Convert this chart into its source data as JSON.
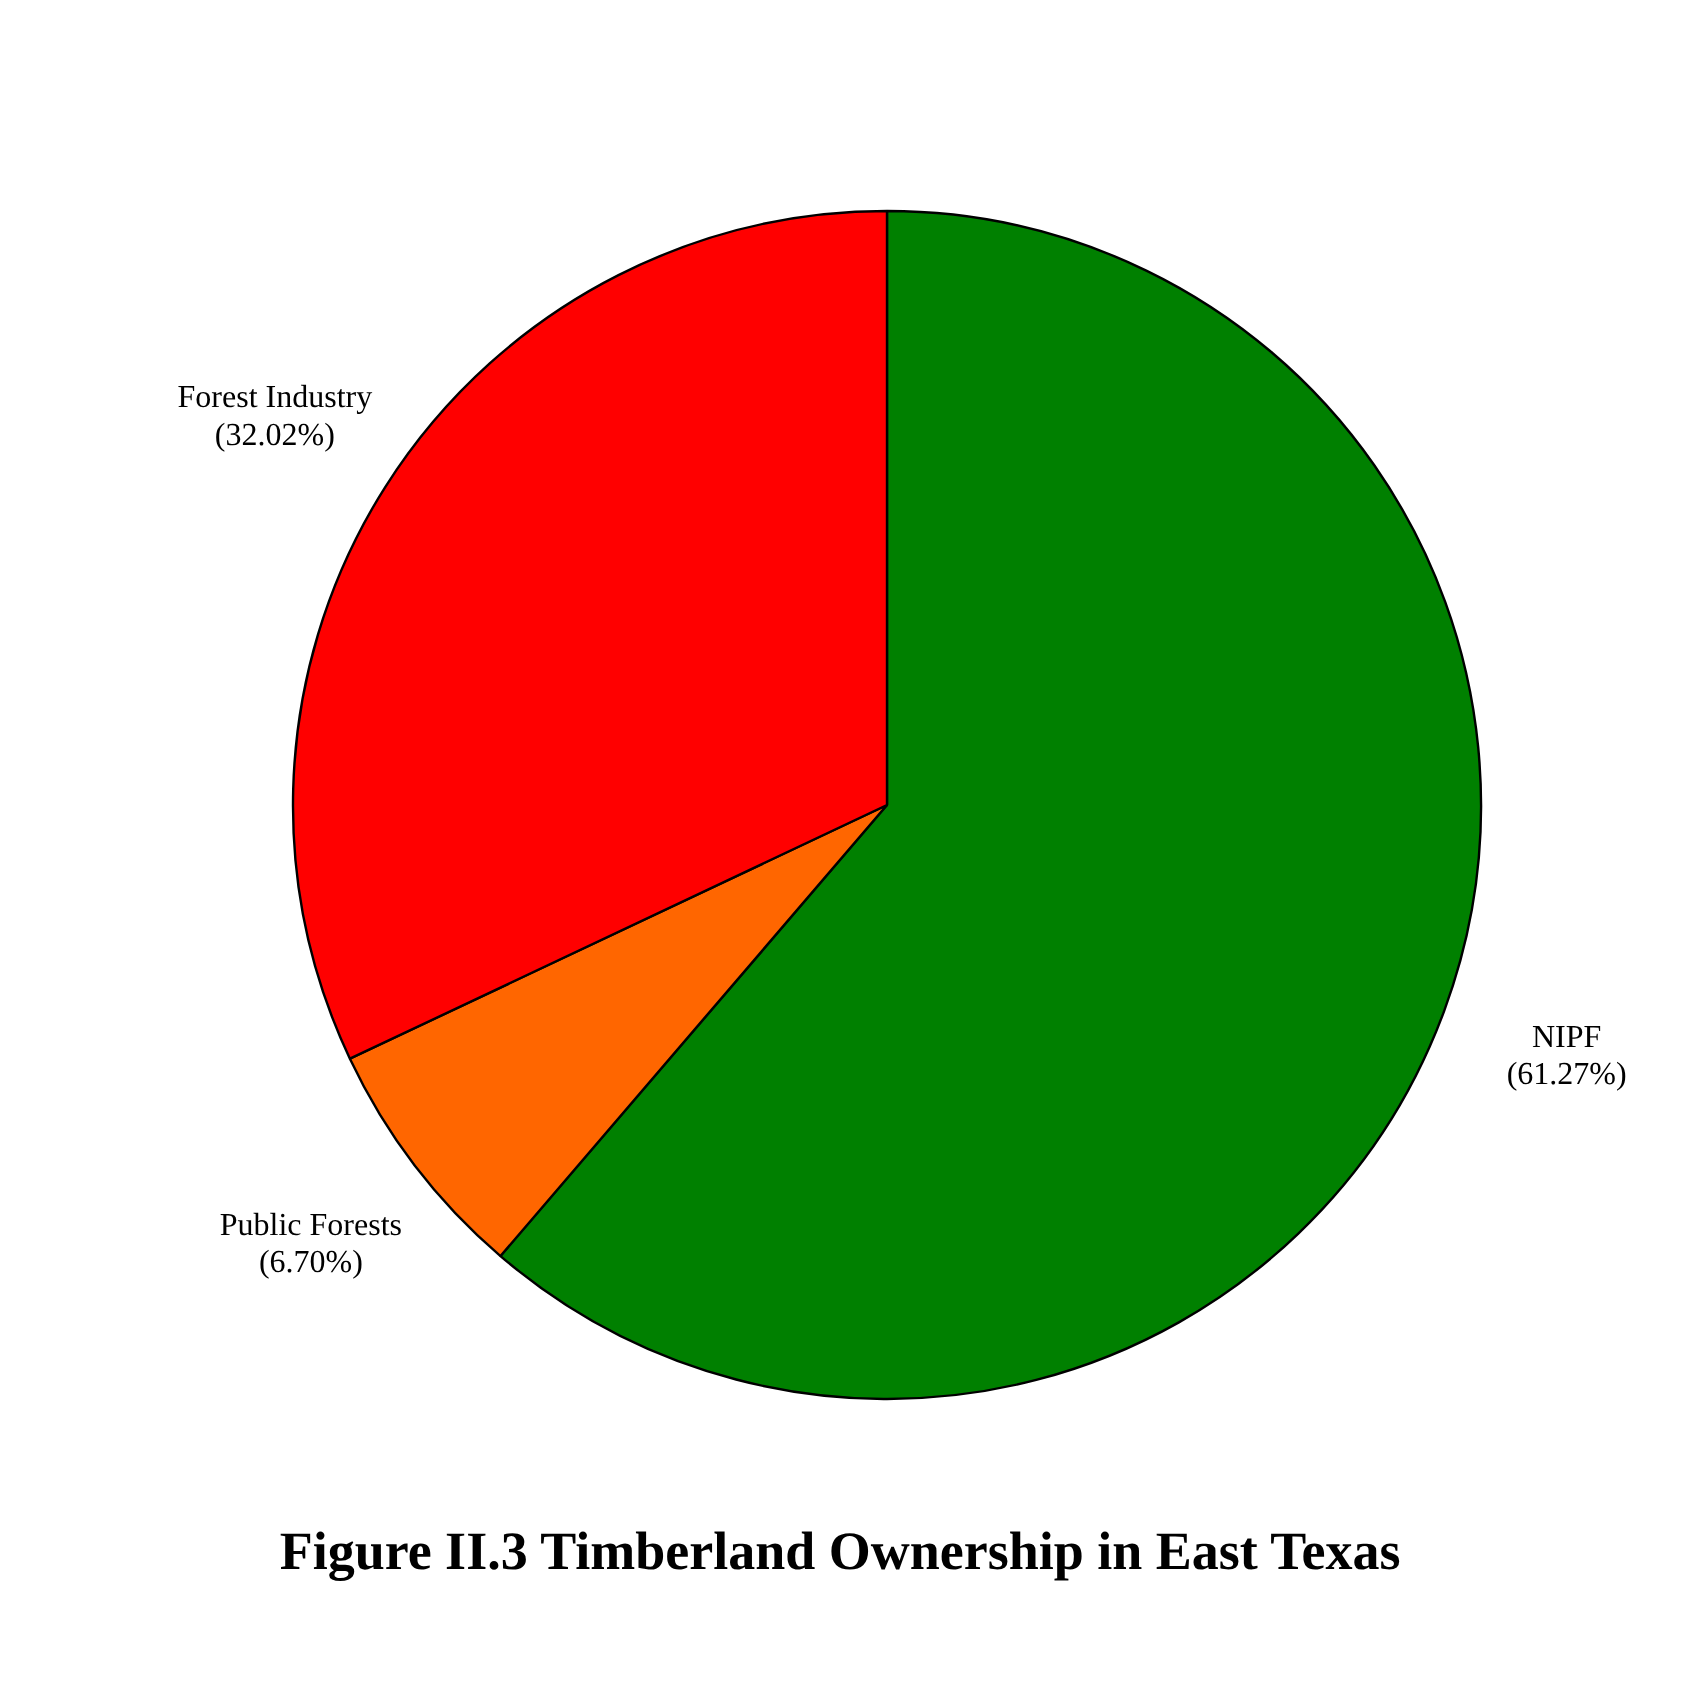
{
  "chart_data": {
    "type": "pie",
    "title": "Figure II.3 Timberland Ownership in East Texas",
    "categories": [
      "NIPF",
      "Public Forests",
      "Forest Industry"
    ],
    "values": [
      61.27,
      6.7,
      32.02
    ],
    "value_labels": [
      "(61.27%)",
      "(6.70%)",
      "(32.02%)"
    ],
    "colors": [
      "#008000",
      "#ff6600",
      "#ff0000"
    ],
    "legend": false
  }
}
